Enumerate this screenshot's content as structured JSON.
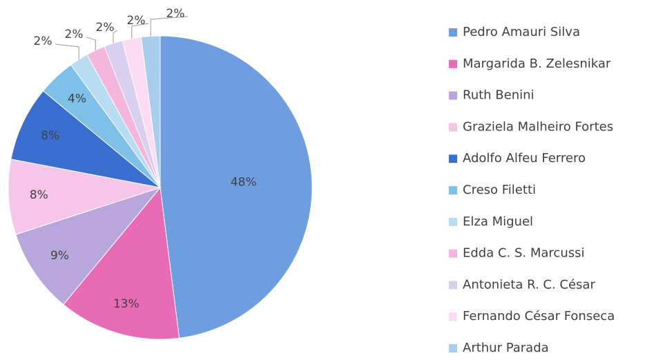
{
  "chart_data": {
    "type": "pie",
    "categories": [
      "Pedro Amauri Silva",
      "Margarida B. Zelesnikar",
      "Ruth Benini",
      "Graziela Malheiro Fortes",
      "Adolfo Alfeu Ferrero",
      "Creso Filetti",
      "Elza Miguel",
      "Edda C. S. Marcussi",
      "Antonieta R. C. César",
      "Fernando César Fonseca",
      "Arthur Parada"
    ],
    "values": [
      48,
      13,
      9,
      8,
      8,
      4,
      2,
      2,
      2,
      2,
      2
    ],
    "value_labels": [
      "48%",
      "13%",
      "9%",
      "8%",
      "8%",
      "4%",
      "2%",
      "2%",
      "2%",
      "2%",
      "2%"
    ],
    "colors": [
      "#6f9ee0",
      "#e86cb5",
      "#b8a6dc",
      "#f5c6ea",
      "#3a6fd0",
      "#7fc0e8",
      "#b8dcf2",
      "#f4b6dc",
      "#d8d0ee",
      "#fbdcf2",
      "#a9cdee"
    ],
    "legend": "right"
  }
}
